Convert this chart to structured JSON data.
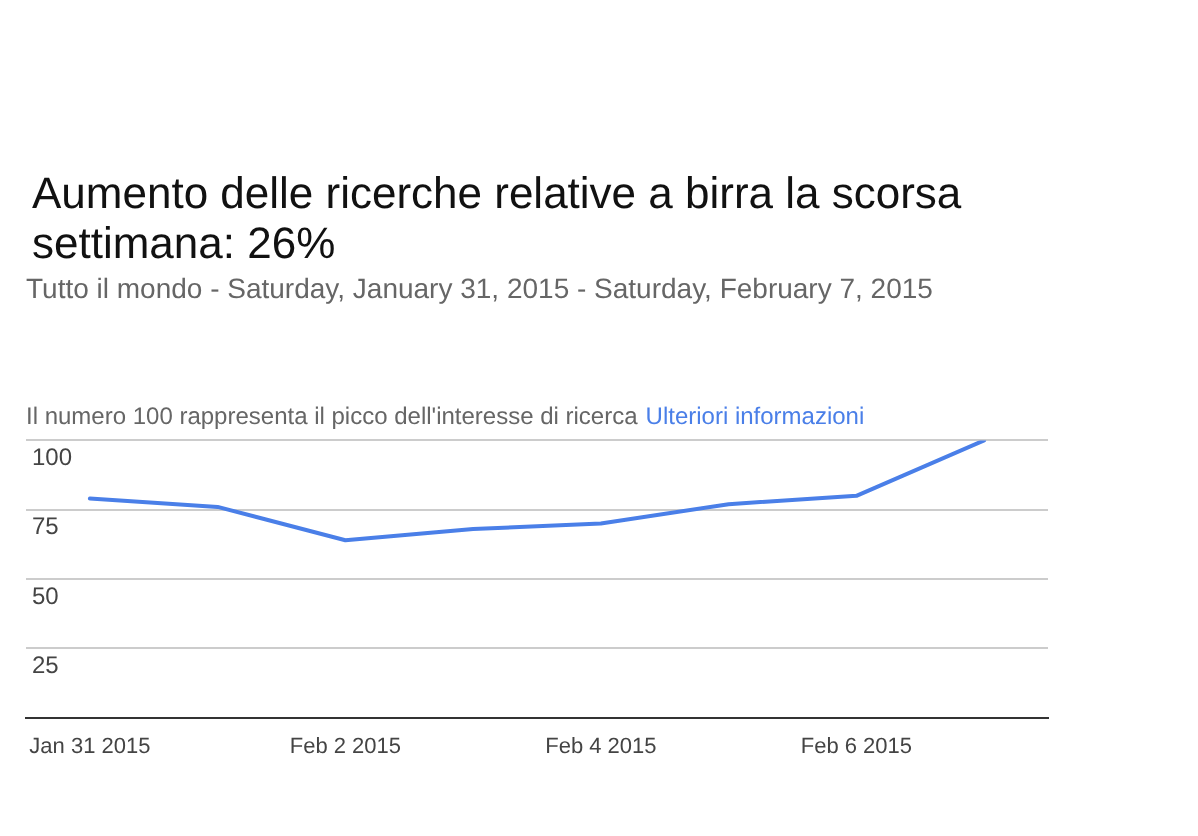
{
  "chart_data": {
    "type": "line",
    "title": "Aumento delle ricerche relative a birra la scorsa settimana: 26%",
    "subtitle": "Tutto il mondo - Saturday, January 31, 2015 - Saturday, February 7, 2015",
    "annotations": [
      "Il numero 100 rappresenta il picco dell'interesse di ricerca",
      "Ulteriori informazioni"
    ],
    "categories": [
      "Jan 31 2015",
      null,
      "Feb 2 2015",
      null,
      "Feb 4 2015",
      null,
      "Feb 6 2015",
      null
    ],
    "values": [
      79,
      76,
      64,
      68,
      70,
      77,
      80,
      100
    ],
    "color": "#4a7fe8",
    "ylim": [
      0,
      100
    ],
    "yticks": [
      25,
      50,
      75,
      100
    ],
    "grid": "y",
    "legend": false,
    "marker": "none",
    "line_style": "solid"
  }
}
